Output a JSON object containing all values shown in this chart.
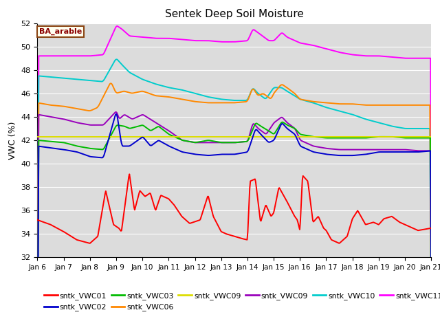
{
  "title": "Sentek Deep Soil Moisture",
  "ylabel": "VWC (%)",
  "ylim": [
    32,
    52
  ],
  "yticks": [
    32,
    34,
    36,
    38,
    40,
    42,
    44,
    46,
    48,
    50,
    52
  ],
  "bg_color": "#dcdcdc",
  "annotation_text": "BA_arable",
  "annotation_color": "#8B0000",
  "annotation_bg": "#fffff0",
  "annotation_border": "#8B4513",
  "legend_entries": [
    {
      "label": "sntk_VWC01",
      "color": "#ff0000"
    },
    {
      "label": "sntk_VWC02",
      "color": "#0000cc"
    },
    {
      "label": "sntk_VWC03",
      "color": "#00bb00"
    },
    {
      "label": "sntk_VWC06",
      "color": "#ff8800"
    },
    {
      "label": "sntk_VWC09",
      "color": "#dddd00"
    },
    {
      "label": "sntk_VWC09",
      "color": "#9900bb"
    },
    {
      "label": "sntk_VWC10",
      "color": "#00cccc"
    },
    {
      "label": "sntk_VWC11",
      "color": "#ff00ff"
    }
  ],
  "xticklabels": [
    "Jan 6",
    "Jan 7",
    "Jan 8",
    "Jan 9",
    "Jan 10",
    "Jan 11",
    "Jan 12",
    "Jan 13",
    "Jan 14",
    "Jan 15",
    "Jan 16",
    "Jan 17",
    "Jan 18",
    "Jan 19",
    "Jan 20",
    "Jan 21"
  ],
  "figsize": [
    6.4,
    4.8
  ],
  "dpi": 100
}
